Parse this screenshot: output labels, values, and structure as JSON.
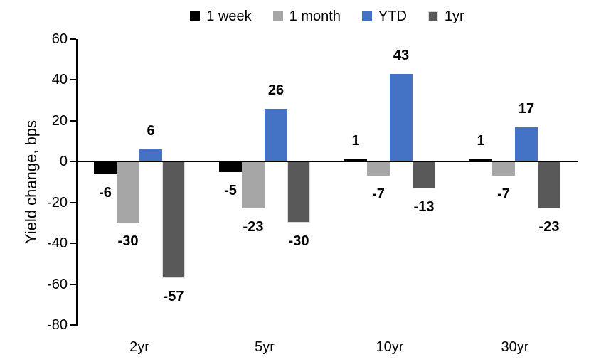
{
  "chart_data": {
    "type": "bar",
    "title": "",
    "ylabel": "Yield change, bps",
    "xlabel": "",
    "categories": [
      "2yr",
      "5yr",
      "10yr",
      "30yr"
    ],
    "series": [
      {
        "name": "1 week",
        "color": "#000000",
        "values": [
          -6,
          -5,
          1,
          1
        ]
      },
      {
        "name": "1 month",
        "color": "#a6a6a6",
        "values": [
          -30,
          -23,
          -7,
          -7
        ]
      },
      {
        "name": "YTD",
        "color": "#4472c4",
        "values": [
          6,
          26,
          43,
          17
        ]
      },
      {
        "name": "1yr",
        "color": "#595959",
        "border_color": "#d9d9d9",
        "values": [
          -57,
          -30,
          -13,
          -23
        ]
      }
    ],
    "ylim": [
      -80,
      60
    ],
    "ytick_step": 20,
    "yticks": [
      60,
      40,
      20,
      0,
      -20,
      -40,
      -60,
      -80
    ],
    "grid": false,
    "legend_position": "top",
    "data_labels": true,
    "axis_color": "#000000",
    "background": "#ffffff"
  }
}
